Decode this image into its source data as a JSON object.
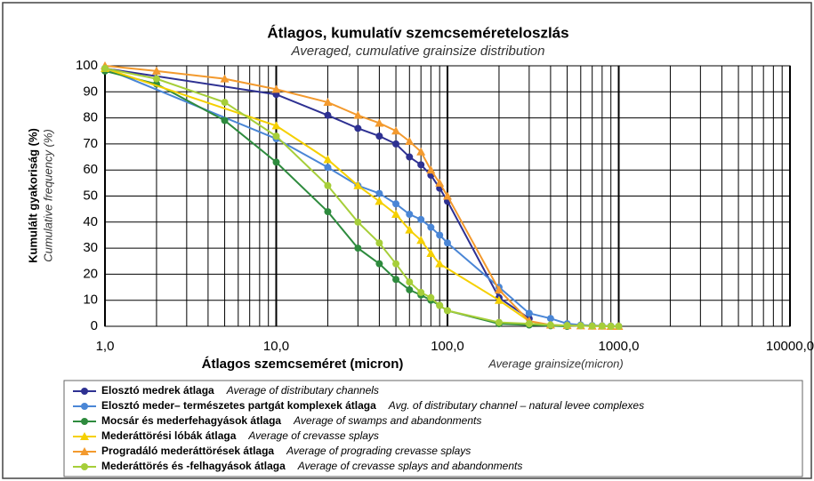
{
  "chart_data": {
    "type": "line",
    "title": "Átlagos, kumulatív szemcseméreteloszlás",
    "subtitle": "Averaged, cumulative grainsize distribution",
    "ylabel": "Kumulált gyakoriság (%)",
    "ylabel_en": "Cumulative frequency (%)",
    "xlabel": "Átlagos szemcseméret (micron)",
    "xlabel_en": "Average grainsize(micron)",
    "xscale": "log",
    "xlim": [
      1,
      10000
    ],
    "xticks": [
      {
        "value": 1,
        "label": "1,0"
      },
      {
        "value": 10,
        "label": "10,0"
      },
      {
        "value": 100,
        "label": "100,0"
      },
      {
        "value": 1000,
        "label": "1000,0"
      },
      {
        "value": 10000,
        "label": "10000,0"
      }
    ],
    "xminor": [
      2,
      3,
      4,
      5,
      6,
      7,
      8,
      9,
      20,
      30,
      40,
      50,
      60,
      70,
      80,
      90,
      200,
      300,
      400,
      500,
      600,
      700,
      800,
      900,
      2000,
      3000,
      4000,
      5000,
      6000,
      7000,
      8000,
      9000
    ],
    "ylim": [
      0,
      100
    ],
    "yticks": [
      0,
      10,
      20,
      30,
      40,
      50,
      60,
      70,
      80,
      90,
      100
    ],
    "grid": true,
    "series": [
      {
        "name": "Elosztó medrek átlaga",
        "name_en": "Average of distributary channels",
        "color": "#2e3192",
        "marker": "circle",
        "x": [
          1,
          10,
          20,
          30,
          40,
          50,
          60,
          70,
          80,
          90,
          100,
          200,
          300
        ],
        "values": [
          99,
          89,
          81,
          76,
          73,
          70,
          65,
          62,
          58,
          53,
          48,
          11,
          3
        ]
      },
      {
        "name": "Elosztó meder– természetes partgát komplexek átlaga",
        "name_en": "Avg. of distributary channel –  natural levee complexes",
        "color": "#4a86d6",
        "marker": "circle",
        "x": [
          1,
          10,
          20,
          30,
          40,
          50,
          60,
          70,
          80,
          90,
          100,
          200,
          300,
          400,
          500,
          600,
          700,
          800,
          900,
          1000
        ],
        "values": [
          99,
          72,
          61,
          54,
          51,
          47,
          43,
          41,
          38,
          35,
          32,
          15,
          5,
          3,
          1,
          0.5,
          0.3,
          0.2,
          0.1,
          0
        ]
      },
      {
        "name": "Mocsár és mederfehagyások átlaga",
        "name_en": "Average of swamps and abandonments",
        "color": "#2e8b3e",
        "marker": "circle",
        "x": [
          1,
          2,
          5,
          10,
          20,
          30,
          40,
          50,
          60,
          70,
          80,
          90,
          100,
          200,
          300,
          400,
          500
        ],
        "values": [
          98,
          93,
          79,
          63,
          44,
          30,
          24,
          18,
          14,
          12,
          10,
          8,
          6,
          1,
          0.5,
          0.2,
          0
        ]
      },
      {
        "name": "Mederáttörési lóbák átlaga",
        "name_en": "Average of crevasse splays",
        "color": "#f5d000",
        "marker": "triangle",
        "x": [
          1,
          10,
          20,
          30,
          40,
          50,
          60,
          70,
          80,
          90,
          200,
          300
        ],
        "values": [
          99,
          77,
          64,
          54,
          48,
          43,
          37,
          33,
          28,
          24,
          10,
          2
        ]
      },
      {
        "name": "Progradáló mederáttörések átlaga",
        "name_en": "Average of prograding crevasse splays",
        "color": "#f39a2e",
        "marker": "triangle",
        "x": [
          1,
          2,
          5,
          10,
          20,
          30,
          40,
          50,
          60,
          70,
          80,
          90,
          100,
          200,
          300,
          400,
          500,
          600,
          700,
          800,
          900,
          1000
        ],
        "values": [
          100,
          98,
          95,
          91,
          86,
          81,
          78,
          75,
          71,
          67,
          60,
          55,
          50,
          14,
          2,
          0.5,
          0.3,
          0.2,
          0.1,
          0.1,
          0,
          0
        ]
      },
      {
        "name": "Mederáttörés  és -felhagyások átlaga",
        "name_en": "Average of crevasse splays and abandonments",
        "color": "#a6ce39",
        "marker": "circle",
        "x": [
          1,
          2,
          5,
          10,
          20,
          30,
          40,
          50,
          60,
          70,
          80,
          90,
          100,
          200,
          300,
          400,
          500,
          600,
          700,
          800,
          900,
          1000
        ],
        "values": [
          99,
          95,
          86,
          73,
          54,
          40,
          32,
          24,
          17,
          13,
          11,
          8,
          6,
          1.5,
          1,
          0.5,
          0.3,
          0.2,
          0.1,
          0.1,
          0,
          0
        ]
      }
    ]
  }
}
